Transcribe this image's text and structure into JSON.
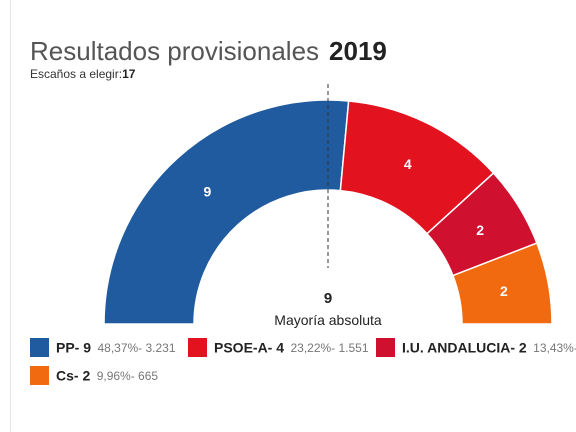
{
  "header": {
    "title": "Resultados provisionales",
    "year": "2019",
    "seats_label": "Escaños a elegir:",
    "seats_total": "17"
  },
  "majority": {
    "value": "9",
    "label": "Mayoría absoluta"
  },
  "colors": {
    "pp": "#1f5b9e",
    "psoe": "#e2131e",
    "iu": "#d0102f",
    "cs": "#f26a10"
  },
  "chart_data": {
    "type": "pie",
    "subtype": "parliament-semicircle",
    "title": "Resultados provisionales 2019",
    "total_seats": 17,
    "majority": 9,
    "series": [
      {
        "name": "PP",
        "seats": 9,
        "percent": "48,37%",
        "votes": "3.231",
        "color": "#1f5b9e"
      },
      {
        "name": "PSOE-A",
        "seats": 4,
        "percent": "23,22%",
        "votes": "1.551",
        "color": "#e2131e"
      },
      {
        "name": "I.U. ANDALUCIA",
        "seats": 2,
        "percent": "13,43%",
        "votes": "",
        "color": "#d0102f"
      },
      {
        "name": "Cs",
        "seats": 2,
        "percent": "9,96%",
        "votes": "665",
        "color": "#f26a10"
      }
    ]
  },
  "legend": [
    {
      "name": "PP- 9",
      "stats": "48,37%- 3.231",
      "color": "#1f5b9e"
    },
    {
      "name": "PSOE-A- 4",
      "stats": "23,22%- 1.551",
      "color": "#e2131e"
    },
    {
      "name": "I.U. ANDALUCIA- 2",
      "stats": "13,43%-",
      "color": "#d0102f"
    },
    {
      "name": "Cs- 2",
      "stats": "9,96%- 665",
      "color": "#f26a10"
    }
  ]
}
